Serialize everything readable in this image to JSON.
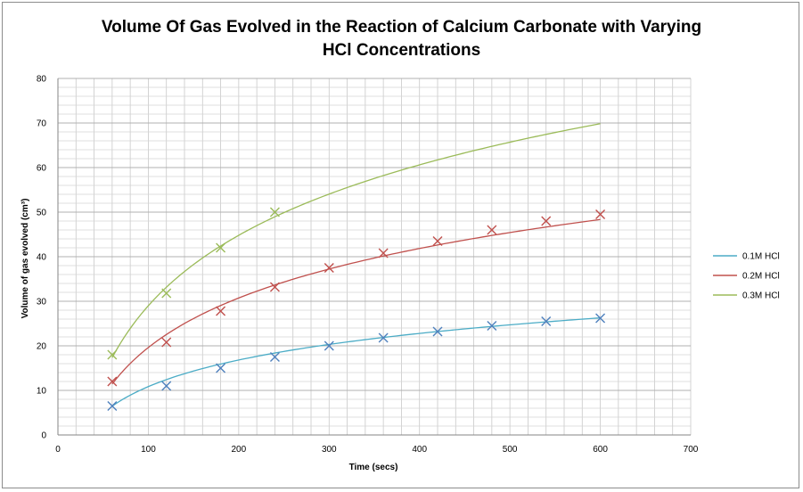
{
  "chart_data": {
    "type": "scatter",
    "title_lines": [
      "Volume Of Gas Evolved in the Reaction of Calcium Carbonate with Varying",
      "HCl Concentrations"
    ],
    "xlabel": "Time (secs)",
    "ylabel": "Volume of gas evolved (cm³)",
    "xlim": [
      0,
      700
    ],
    "ylim": [
      0,
      80
    ],
    "x_ticks": [
      0,
      100,
      200,
      300,
      400,
      500,
      600,
      700
    ],
    "y_ticks": [
      0,
      10,
      20,
      30,
      40,
      50,
      60,
      70,
      80
    ],
    "grid": true,
    "legend_position": "right",
    "series": [
      {
        "name": "0.1M HCl",
        "color": "#4bacc6",
        "marker_color": "#4f81bd",
        "x": [
          60,
          120,
          180,
          240,
          300,
          360,
          420,
          480,
          540,
          600
        ],
        "y": [
          6.5,
          11,
          15,
          17.5,
          20,
          21.8,
          23.2,
          24.5,
          25.5,
          26.2
        ],
        "trend_x": [
          60,
          600
        ],
        "trend_a": 8.61,
        "trend_b": -28.8
      },
      {
        "name": "0.2M HCl",
        "color": "#c0504d",
        "marker_color": "#c0504d",
        "x": [
          60,
          120,
          180,
          240,
          300,
          360,
          420,
          480,
          540,
          600
        ],
        "y": [
          12,
          20.8,
          27.8,
          33.2,
          37.5,
          40.8,
          43.5,
          46,
          48,
          49.5
        ],
        "trend_x": [
          60,
          600
        ],
        "trend_a": 16.03,
        "trend_b": -54.2
      },
      {
        "name": "0.3M HCl",
        "color": "#9bbb59",
        "marker_color": "#9bbb59",
        "x": [
          60,
          120,
          180,
          240
        ],
        "y": [
          18,
          31.8,
          42,
          50
        ],
        "trend_x": [
          60,
          600
        ],
        "trend_a": 22.8,
        "trend_b": -76
      }
    ]
  }
}
